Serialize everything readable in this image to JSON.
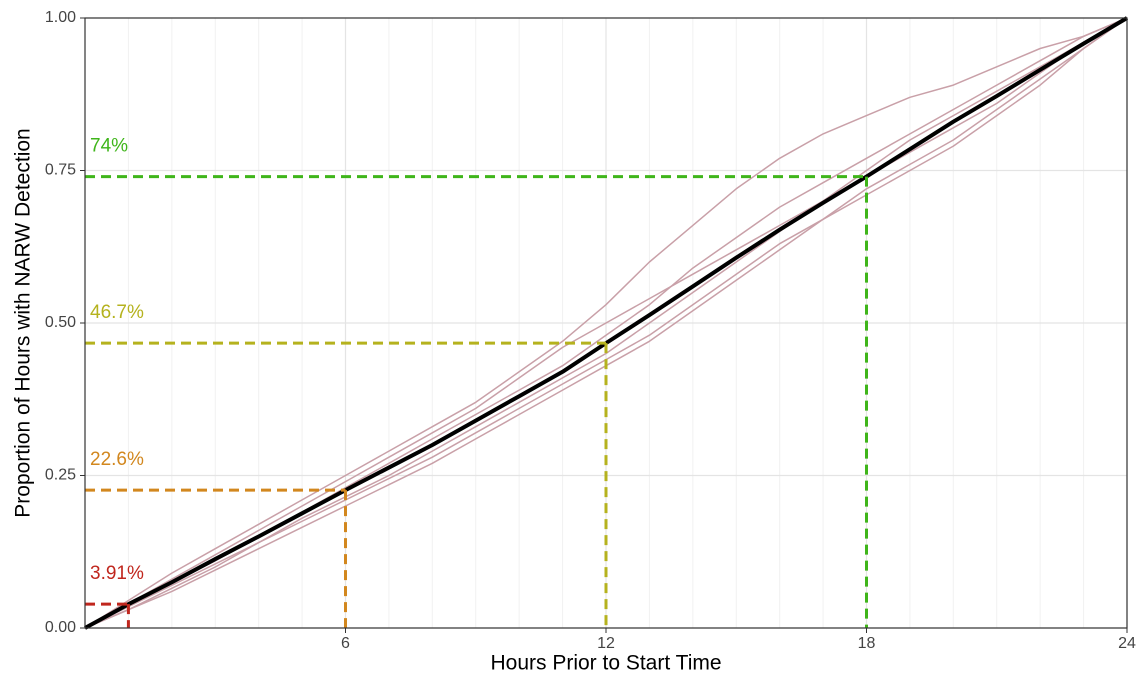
{
  "chart_data": {
    "type": "line",
    "x_label": "Hours Prior to Start Time",
    "y_label": "Proportion of Hours with NARW Detection",
    "x": [
      0,
      1,
      2,
      3,
      4,
      5,
      6,
      7,
      8,
      9,
      10,
      11,
      12,
      13,
      14,
      15,
      16,
      17,
      18,
      19,
      20,
      21,
      22,
      23,
      24
    ],
    "xlim": [
      0,
      24
    ],
    "xticks": [
      6,
      12,
      18,
      24
    ],
    "ylim": [
      0,
      1
    ],
    "yticks": [
      {
        "value": 0,
        "label": "0.00"
      },
      {
        "value": 0.25,
        "label": "0.25"
      },
      {
        "value": 0.5,
        "label": "0.50"
      },
      {
        "value": 0.75,
        "label": "0.75"
      },
      {
        "value": 1,
        "label": "1.00"
      }
    ],
    "grid": true,
    "series": [
      {
        "color": "#c9a0a8",
        "values": [
          0,
          0.045,
          0.09,
          0.13,
          0.17,
          0.21,
          0.25,
          0.29,
          0.33,
          0.37,
          0.42,
          0.47,
          0.53,
          0.6,
          0.66,
          0.72,
          0.77,
          0.81,
          0.84,
          0.87,
          0.89,
          0.92,
          0.95,
          0.97,
          1
        ]
      },
      {
        "color": "#c9a0a8",
        "values": [
          0,
          0.03,
          0.06,
          0.095,
          0.13,
          0.165,
          0.2,
          0.235,
          0.27,
          0.31,
          0.35,
          0.39,
          0.43,
          0.47,
          0.52,
          0.57,
          0.62,
          0.67,
          0.71,
          0.75,
          0.79,
          0.84,
          0.89,
          0.95,
          1
        ]
      },
      {
        "color": "#c9a0a8",
        "values": [
          0,
          0.04,
          0.08,
          0.12,
          0.16,
          0.2,
          0.24,
          0.28,
          0.32,
          0.36,
          0.41,
          0.46,
          0.5,
          0.54,
          0.58,
          0.62,
          0.66,
          0.7,
          0.74,
          0.78,
          0.82,
          0.86,
          0.91,
          0.96,
          1
        ]
      },
      {
        "color": "#c9a0a8",
        "values": [
          0,
          0.035,
          0.07,
          0.105,
          0.14,
          0.18,
          0.215,
          0.25,
          0.29,
          0.33,
          0.37,
          0.41,
          0.45,
          0.5,
          0.55,
          0.6,
          0.65,
          0.7,
          0.75,
          0.8,
          0.84,
          0.88,
          0.92,
          0.96,
          1
        ]
      },
      {
        "color": "#c9a0a8",
        "values": [
          0,
          0.04,
          0.075,
          0.11,
          0.15,
          0.19,
          0.23,
          0.27,
          0.31,
          0.35,
          0.39,
          0.43,
          0.48,
          0.53,
          0.59,
          0.64,
          0.69,
          0.73,
          0.77,
          0.81,
          0.85,
          0.89,
          0.93,
          0.97,
          1
        ]
      },
      {
        "color": "#c9a0a8",
        "values": [
          0,
          0.03,
          0.065,
          0.1,
          0.14,
          0.175,
          0.21,
          0.245,
          0.28,
          0.32,
          0.36,
          0.4,
          0.44,
          0.48,
          0.53,
          0.58,
          0.63,
          0.67,
          0.72,
          0.76,
          0.8,
          0.85,
          0.9,
          0.95,
          1
        ]
      },
      {
        "color": "#000000",
        "values": [
          0,
          0.039,
          0.075,
          0.113,
          0.15,
          0.188,
          0.226,
          0.263,
          0.3,
          0.34,
          0.38,
          0.42,
          0.467,
          0.513,
          0.56,
          0.607,
          0.653,
          0.697,
          0.74,
          0.785,
          0.83,
          0.872,
          0.915,
          0.958,
          1
        ]
      }
    ],
    "annotations": [
      {
        "x": 1,
        "y": 0.0391,
        "label": "3.91%",
        "color": "#c0261d"
      },
      {
        "x": 6,
        "y": 0.226,
        "label": "22.6%",
        "color": "#d2871e"
      },
      {
        "x": 12,
        "y": 0.467,
        "label": "46.7%",
        "color": "#b5b21e"
      },
      {
        "x": 18,
        "y": 0.74,
        "label": "74%",
        "color": "#3fb51a"
      }
    ]
  }
}
